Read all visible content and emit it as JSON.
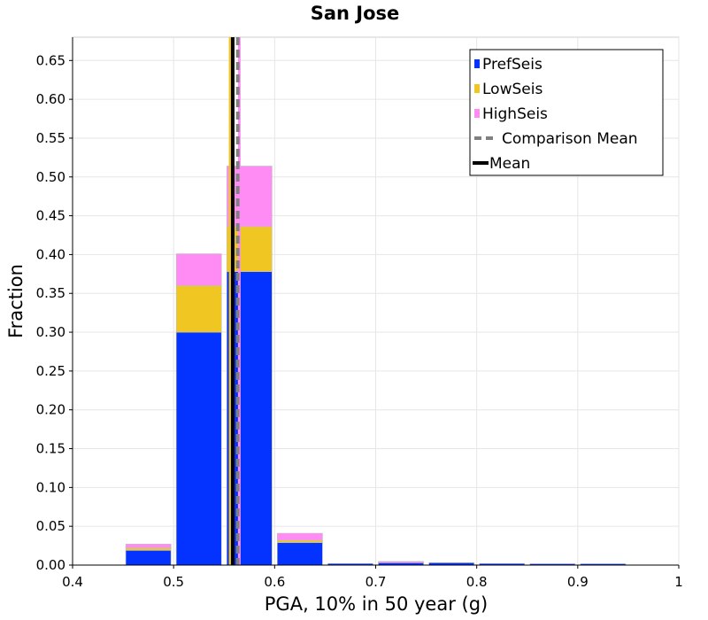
{
  "chart_data": {
    "type": "bar",
    "title": "San Jose",
    "xlabel": "PGA, 10% in 50 year (g)",
    "ylabel": "Fraction",
    "xlim": [
      0.4,
      1.0
    ],
    "ylim": [
      0,
      0.68
    ],
    "grid": true,
    "legend_position": "top-right",
    "stacked": true,
    "bin_width": 0.05,
    "x_ticks": [
      "0.4",
      "0.5",
      "0.6",
      "0.7",
      "0.8",
      "0.9",
      "1"
    ],
    "x_tick_values": [
      0.4,
      0.5,
      0.6,
      0.7,
      0.8,
      0.9,
      1.0
    ],
    "y_ticks": [
      "0.00",
      "0.05",
      "0.10",
      "0.15",
      "0.20",
      "0.25",
      "0.30",
      "0.35",
      "0.40",
      "0.45",
      "0.50",
      "0.55",
      "0.60",
      "0.65"
    ],
    "y_tick_values": [
      0,
      0.05,
      0.1,
      0.15,
      0.2,
      0.25,
      0.3,
      0.35,
      0.4,
      0.45,
      0.5,
      0.55,
      0.6,
      0.65
    ],
    "bins": [
      0.45,
      0.5,
      0.55,
      0.6,
      0.65,
      0.7,
      0.75,
      0.8,
      0.85,
      0.9,
      0.95
    ],
    "series": [
      {
        "name": "PrefSeis",
        "color": "#0433ff",
        "values": [
          0.019,
          0.3,
          0.378,
          0.029,
          0.002,
          0.003,
          0.003,
          0.002,
          0.001,
          0.001,
          0.0
        ]
      },
      {
        "name": "LowSeis",
        "color": "#f0c722",
        "values": [
          0.003,
          0.06,
          0.058,
          0.003,
          0.0,
          0.0,
          0.0,
          0.0,
          0.0,
          0.0,
          0.0
        ]
      },
      {
        "name": "HighSeis",
        "color": "#ff8cf5",
        "values": [
          0.005,
          0.041,
          0.078,
          0.009,
          0.0,
          0.001,
          0.0,
          0.0,
          0.0,
          0.0,
          0.0
        ]
      }
    ],
    "vertical_lines": [
      {
        "name": "",
        "color": "#f0c722",
        "x": 0.556,
        "width": 3,
        "dash": false,
        "in_legend": false
      },
      {
        "name": "",
        "color": "#ff8cf5",
        "x": 0.565,
        "width": 3,
        "dash": false,
        "in_legend": false
      },
      {
        "name": "Comparison Mean",
        "color": "#808080",
        "x": 0.5635,
        "width": 4,
        "dash": true,
        "in_legend": true
      },
      {
        "name": "Mean",
        "color": "#000000",
        "x": 0.5585,
        "width": 4,
        "dash": false,
        "in_legend": true
      }
    ],
    "legend": [
      {
        "label": "PrefSeis",
        "kind": "box",
        "color": "#0433ff"
      },
      {
        "label": "LowSeis",
        "kind": "box",
        "color": "#f0c722"
      },
      {
        "label": "HighSeis",
        "kind": "box",
        "color": "#ff8cf5"
      },
      {
        "label": "Comparison Mean",
        "kind": "dash",
        "color": "#808080"
      },
      {
        "label": "Mean",
        "kind": "line",
        "color": "#000000"
      }
    ]
  }
}
